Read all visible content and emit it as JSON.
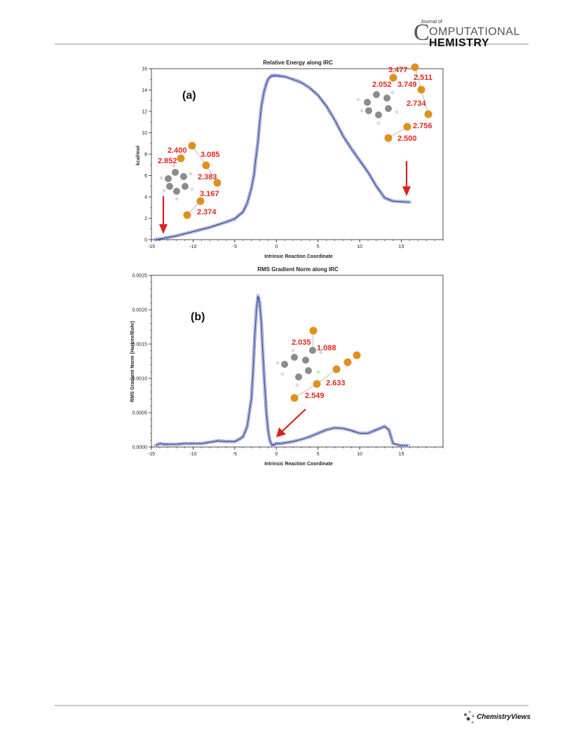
{
  "header": {
    "journal_small": "Journal of",
    "journal_initial": "C",
    "journal_line1": "OMPUTATIONAL",
    "journal_line2": "HEMISTRY"
  },
  "footer": {
    "publisher_logo": "ChemistryViews"
  },
  "colors": {
    "marker": "#5b6fdc",
    "fit_line": "#111111",
    "arrow": "#d8231f",
    "label": "#e0281e",
    "halogen": "#e0901f",
    "carbon": "#8c8c8c",
    "hydrogen": "#dcdcdc"
  },
  "chart_data": [
    {
      "type": "line",
      "title": "Relative Energy along IRC",
      "panel_label": "(a)",
      "xlabel": "Intrinsic Reaction Coordinate",
      "ylabel": "kcal/mol",
      "xlim": [
        -15,
        20
      ],
      "ylim": [
        0,
        16
      ],
      "xticks": [
        "-15",
        "-10",
        "-5",
        "0",
        "5",
        "10",
        "15"
      ],
      "yticks": [
        "0",
        "2",
        "4",
        "6",
        "8",
        "10",
        "12",
        "14",
        "16"
      ],
      "grid": false,
      "series": [
        {
          "x": [
            -14.5,
            -14,
            -13,
            -12,
            -11,
            -10,
            -9,
            -8,
            -7,
            -6,
            -5,
            -4,
            -3.5,
            -3,
            -2.7,
            -2.5,
            -2.2,
            -2,
            -1.8,
            -1.5,
            -1.2,
            -1,
            -0.8,
            -0.6,
            -0.4,
            -0.2,
            0,
            0.5,
            1,
            2,
            3,
            4,
            5,
            6,
            7,
            8,
            9,
            10,
            11,
            12,
            13,
            14,
            15,
            16
          ],
          "y": [
            0.0,
            0.05,
            0.2,
            0.35,
            0.55,
            0.75,
            0.95,
            1.15,
            1.4,
            1.65,
            1.95,
            2.6,
            3.4,
            4.8,
            6.0,
            7.4,
            9.2,
            11.0,
            12.5,
            13.8,
            14.6,
            15.0,
            15.2,
            15.3,
            15.35,
            15.35,
            15.35,
            15.3,
            15.25,
            15.0,
            14.7,
            14.2,
            13.5,
            12.5,
            11.2,
            9.7,
            8.5,
            7.4,
            6.3,
            5.0,
            3.9,
            3.6,
            3.55,
            3.5
          ]
        }
      ],
      "molecule_labels_left": [
        "2.400",
        "3.085",
        "2.852",
        "2.383",
        "3.167",
        "2.374"
      ],
      "molecule_labels_right": [
        "3.477",
        "2.511",
        "2.052",
        "3.749",
        "2.734",
        "2.756",
        "2.500"
      ]
    },
    {
      "type": "line",
      "title": "RMS Gradient Norm along IRC",
      "panel_label": "(b)",
      "xlabel": "Intrinsic Reaction Coordinate",
      "ylabel": "RMS Gradient Norm (Hartree/Bohr)",
      "xlim": [
        -15,
        20
      ],
      "ylim": [
        0,
        0.0025
      ],
      "xticks": [
        "-15",
        "-10",
        "-5",
        "0",
        "5",
        "10",
        "15"
      ],
      "yticks": [
        "0.0000",
        "0.0005",
        "0.0010",
        "0.0015",
        "0.0020",
        "0.0025"
      ],
      "grid": false,
      "series": [
        {
          "x": [
            -14.5,
            -14,
            -13.5,
            -13,
            -12,
            -11,
            -10,
            -9,
            -8,
            -7,
            -6,
            -5,
            -4.5,
            -4,
            -3.5,
            -3,
            -2.8,
            -2.6,
            -2.4,
            -2.2,
            -2,
            -1.8,
            -1.6,
            -1.4,
            -1.2,
            -1,
            -0.8,
            -0.6,
            -0.4,
            -0.2,
            0,
            0.5,
            1,
            2,
            3,
            4,
            5,
            6,
            7,
            8,
            9,
            10,
            11,
            12,
            13,
            13.5,
            14,
            15,
            15.8
          ],
          "y": [
            2e-05,
            5e-05,
            4e-05,
            4e-05,
            4e-05,
            5e-05,
            5e-05,
            5e-05,
            7e-05,
            9e-05,
            8e-05,
            8e-05,
            0.00011,
            0.00015,
            0.0003,
            0.0007,
            0.0011,
            0.0016,
            0.002,
            0.0022,
            0.0021,
            0.0018,
            0.0013,
            0.0009,
            0.0005,
            0.00025,
            0.0001,
            4e-05,
            2e-05,
            4e-05,
            5e-05,
            5e-05,
            6e-05,
            8e-05,
            0.00011,
            0.00015,
            0.0002,
            0.00025,
            0.00028,
            0.00027,
            0.00024,
            0.0002,
            0.0002,
            0.00025,
            0.0003,
            0.00025,
            5e-05,
            2e-05,
            2e-05
          ]
        }
      ],
      "molecule_labels": [
        "2.035",
        "1.088",
        "2.633",
        "2.549"
      ]
    }
  ]
}
